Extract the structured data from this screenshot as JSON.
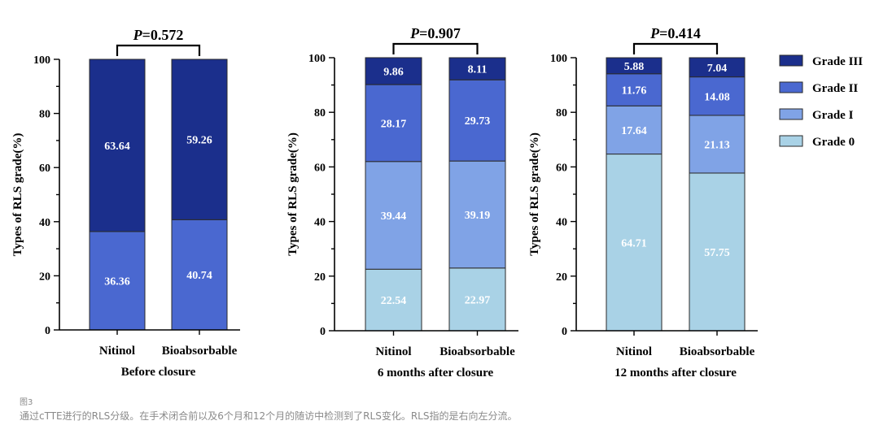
{
  "legend": {
    "placement": "right",
    "entries": [
      {
        "key": "g3",
        "label": "Grade III",
        "color": "#1b2f8c"
      },
      {
        "key": "g2",
        "label": "Grade II",
        "color": "#4a68d0"
      },
      {
        "key": "g1",
        "label": "Grade I",
        "color": "#80a3e6"
      },
      {
        "key": "g0",
        "label": "Grade 0",
        "color": "#a9d2e6"
      }
    ]
  },
  "chart_data": [
    {
      "type": "bar",
      "stacked": true,
      "title": "P=0.572",
      "xlabel": "Before closure",
      "ylabel": "Types of RLS grade(%)",
      "ylim": [
        0,
        100
      ],
      "yticks": [
        "0",
        "20",
        "40",
        "60",
        "80",
        "100"
      ],
      "categories": [
        "Nitinol",
        "Bioabsorbable"
      ],
      "series": [
        {
          "name": "Grade II",
          "key": "g2",
          "values": [
            36.36,
            40.74
          ],
          "labels": [
            "36.36",
            "40.74"
          ]
        },
        {
          "name": "Grade III",
          "key": "g3",
          "values": [
            63.64,
            59.26
          ],
          "labels": [
            "63.64",
            "59.26"
          ]
        }
      ]
    },
    {
      "type": "bar",
      "stacked": true,
      "title": "P=0.907",
      "xlabel": "6 months after closure",
      "ylabel": "Types of RLS grade(%)",
      "ylim": [
        0,
        100
      ],
      "yticks": [
        "0",
        "20",
        "40",
        "60",
        "80",
        "100"
      ],
      "categories": [
        "Nitinol",
        "Bioabsorbable"
      ],
      "series": [
        {
          "name": "Grade 0",
          "key": "g0",
          "values": [
            22.54,
            22.97
          ],
          "labels": [
            "22.54",
            "22.97"
          ]
        },
        {
          "name": "Grade I",
          "key": "g1",
          "values": [
            39.44,
            39.19
          ],
          "labels": [
            "39.44",
            "39.19"
          ]
        },
        {
          "name": "Grade II",
          "key": "g2",
          "values": [
            28.17,
            29.73
          ],
          "labels": [
            "28.17",
            "29.73"
          ]
        },
        {
          "name": "Grade III",
          "key": "g3",
          "values": [
            9.86,
            8.11
          ],
          "labels": [
            "9.86",
            "8.11"
          ]
        }
      ]
    },
    {
      "type": "bar",
      "stacked": true,
      "title": "P=0.414",
      "xlabel": "12 months after closure",
      "ylabel": "Types of RLS grade(%)",
      "ylim": [
        0,
        100
      ],
      "yticks": [
        "0",
        "20",
        "40",
        "60",
        "80",
        "100"
      ],
      "categories": [
        "Nitinol",
        "Bioabsorbable"
      ],
      "series": [
        {
          "name": "Grade 0",
          "key": "g0",
          "values": [
            64.71,
            57.75
          ],
          "labels": [
            "64.71",
            "57.75"
          ]
        },
        {
          "name": "Grade I",
          "key": "g1",
          "values": [
            17.64,
            21.13
          ],
          "labels": [
            "17.64",
            "21.13"
          ]
        },
        {
          "name": "Grade II",
          "key": "g2",
          "values": [
            11.76,
            14.08
          ],
          "labels": [
            "11.76",
            "14.08"
          ]
        },
        {
          "name": "Grade III",
          "key": "g3",
          "values": [
            5.88,
            7.04
          ],
          "labels": [
            "5.88",
            "7.04"
          ]
        }
      ]
    }
  ],
  "figure": {
    "label": "图3",
    "caption": "通过cTTE进行的RLS分级。在手术闭合前以及6个月和12个月的随访中检测到了RLS变化。RLS指的是右向左分流。"
  }
}
